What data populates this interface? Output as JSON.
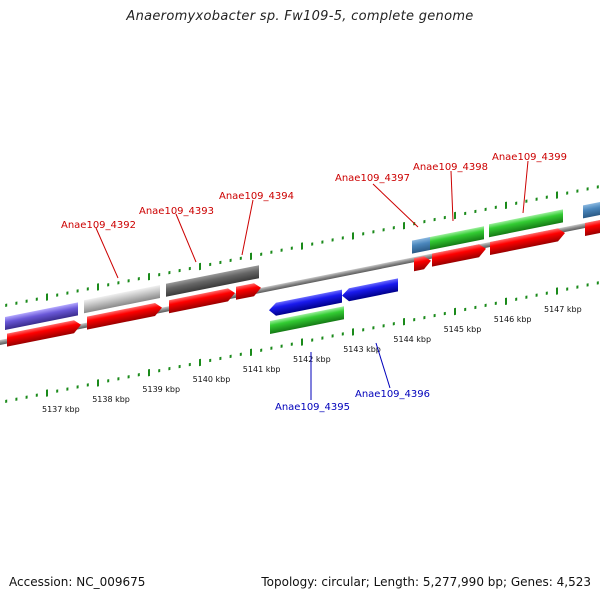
{
  "title": "Anaeromyxobacter sp. Fw109-5, complete genome",
  "footer": {
    "accession": "Accession: NC_009675",
    "summary": "Topology: circular; Length: 5,277,990 bp; Genes: 4,523"
  },
  "colors": {
    "forward_label": "#cc0000",
    "reverse_label": "#0000bb",
    "ruler_tick": "#1a8a1a",
    "backbone": "#8a8a8a"
  },
  "ruler": {
    "unit": "kbp",
    "labels": [
      "5137 kbp",
      "5138 kbp",
      "5139 kbp",
      "5140 kbp",
      "5141 kbp",
      "5142 kbp",
      "5143 kbp",
      "5144 kbp",
      "5145 kbp",
      "5146 kbp",
      "5147 kbp"
    ]
  },
  "forward_labels": [
    "Anae109_4392",
    "Anae109_4393",
    "Anae109_4394",
    "Anae109_4397",
    "Anae109_4398",
    "Anae109_4399"
  ],
  "reverse_labels": [
    "Anae109_4395",
    "Anae109_4396"
  ]
}
